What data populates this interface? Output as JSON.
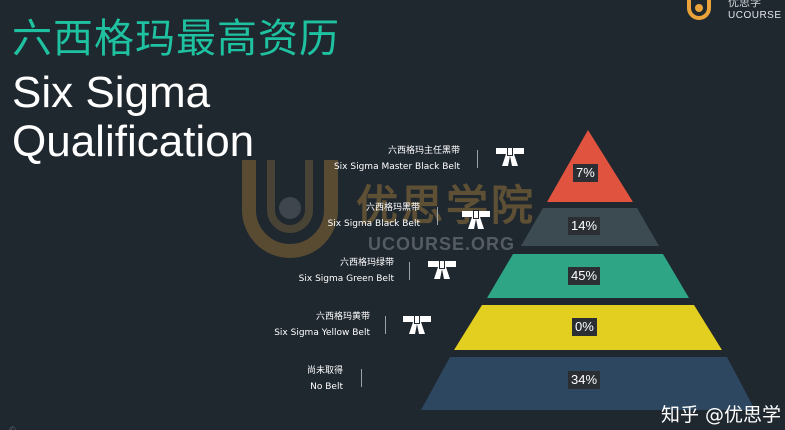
{
  "title_cn": "六西格玛最高资历",
  "title_en_line1": "Six Sigma",
  "title_en_line2": "Qualification",
  "brand": {
    "cn": "优思学",
    "en": "UCOURSE"
  },
  "watermark": {
    "cn": "优思学院",
    "en": "UCOURSE.ORG"
  },
  "belts": [
    {
      "cn": "六西格玛主任黑带",
      "en": "Six Sigma Master Black Belt",
      "percent": "7%",
      "color": "#e0533f",
      "icon": "belt-icon"
    },
    {
      "cn": "六西格玛黑带",
      "en": "Six Sigma Black Belt",
      "percent": "14%",
      "color": "#3c4b52",
      "icon": "belt-icon"
    },
    {
      "cn": "六西格玛绿带",
      "en": "Six Sigma Green Belt",
      "percent": "45%",
      "color": "#2ea585",
      "icon": "belt-icon"
    },
    {
      "cn": "六西格玛黄带",
      "en": "Six Sigma Yellow Belt",
      "percent": "0%",
      "color": "#e3cf1f",
      "icon": "belt-icon"
    },
    {
      "cn": "尚未取得",
      "en": "No Belt",
      "percent": "34%",
      "color": "#2e4760",
      "icon": null
    }
  ],
  "footer_left": "© ...",
  "footer_right": "知乎 @优思学"
}
